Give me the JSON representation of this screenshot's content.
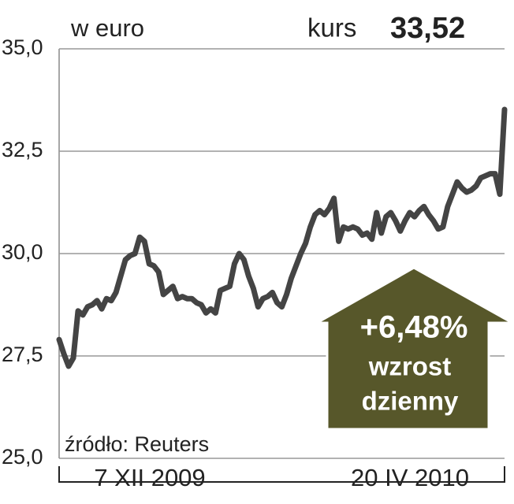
{
  "chart_data": {
    "type": "line",
    "unit_label": "w euro",
    "price_label": "kurs",
    "price": "33,52",
    "change": "+6,48%",
    "change_text": [
      "wzrost",
      "dzienny"
    ],
    "source": "źródło: Reuters",
    "x_labels": [
      "7 XII 2009",
      "20 IV 2010"
    ],
    "color": "#444444",
    "grid": true,
    "ylim": [
      25,
      35
    ],
    "yticks": [
      {
        "value": 25,
        "label": "25,0"
      },
      {
        "value": 27.5,
        "label": "27,5"
      },
      {
        "value": 30,
        "label": "30,0"
      },
      {
        "value": 32.5,
        "label": "32,5"
      },
      {
        "value": 35,
        "label": "35,0"
      }
    ],
    "values": [
      27.9,
      27.55,
      27.25,
      27.45,
      28.6,
      28.5,
      28.7,
      28.75,
      28.85,
      28.65,
      28.9,
      28.85,
      29.05,
      29.45,
      29.85,
      29.95,
      30.0,
      30.4,
      30.3,
      29.75,
      29.7,
      29.55,
      29.0,
      29.1,
      29.2,
      28.9,
      28.95,
      28.9,
      28.9,
      28.8,
      28.75,
      28.55,
      28.65,
      28.55,
      29.1,
      29.15,
      29.2,
      29.75,
      30.0,
      29.85,
      29.45,
      29.15,
      28.7,
      28.9,
      28.95,
      29.05,
      28.8,
      28.7,
      29.0,
      29.4,
      29.7,
      30.0,
      30.25,
      30.65,
      30.95,
      31.05,
      30.95,
      31.1,
      31.35,
      30.3,
      30.65,
      30.6,
      30.65,
      30.6,
      30.45,
      30.5,
      30.35,
      31.0,
      30.5,
      30.9,
      31.0,
      30.8,
      30.55,
      30.8,
      31.0,
      30.9,
      31.05,
      31.15,
      30.95,
      30.8,
      30.6,
      30.65,
      31.15,
      31.45,
      31.75,
      31.6,
      31.5,
      31.55,
      31.65,
      31.85,
      31.9,
      31.95,
      31.95,
      31.45,
      33.52
    ]
  }
}
